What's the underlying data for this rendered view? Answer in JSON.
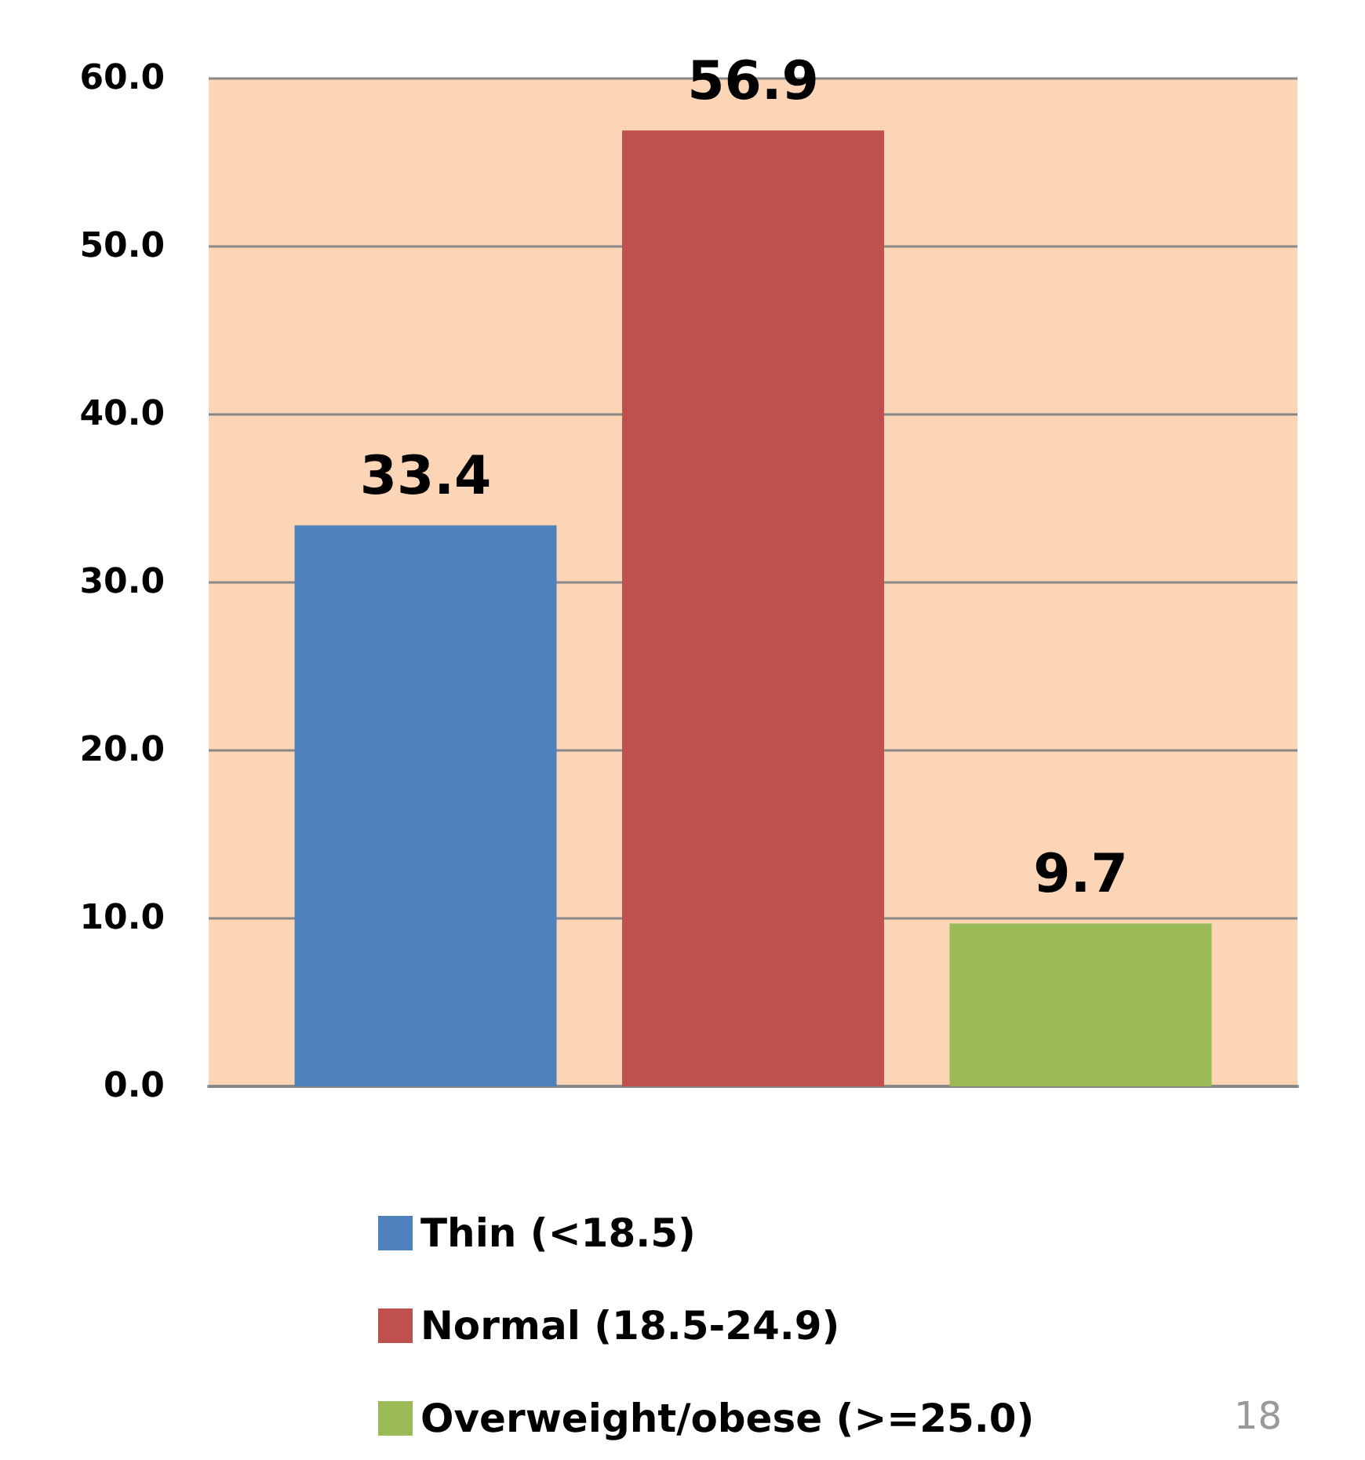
{
  "chart_data": {
    "type": "bar",
    "categories": [
      null
    ],
    "series": [
      {
        "name": "Thin (<18.5)",
        "color": "#4f81bd",
        "values": [
          33.4
        ]
      },
      {
        "name": "Normal (18.5-24.9)",
        "color": "#c0504d",
        "values": [
          56.9
        ]
      },
      {
        "name": "Overweight/obese (>=25.0)",
        "color": "#9bbb59",
        "values": [
          9.7
        ]
      }
    ],
    "ylim": [
      0,
      60
    ],
    "yticks": [
      {
        "value": 0,
        "label": "0.0"
      },
      {
        "value": 10,
        "label": "10.0"
      },
      {
        "value": 20,
        "label": "20.0"
      },
      {
        "value": 30,
        "label": "30.0"
      },
      {
        "value": 40,
        "label": "40.0"
      },
      {
        "value": 50,
        "label": "50.0"
      },
      {
        "value": 60,
        "label": "60.0"
      }
    ],
    "grid": "y",
    "legend": "bottom",
    "data_labels": true,
    "annotations": [
      "18"
    ]
  }
}
